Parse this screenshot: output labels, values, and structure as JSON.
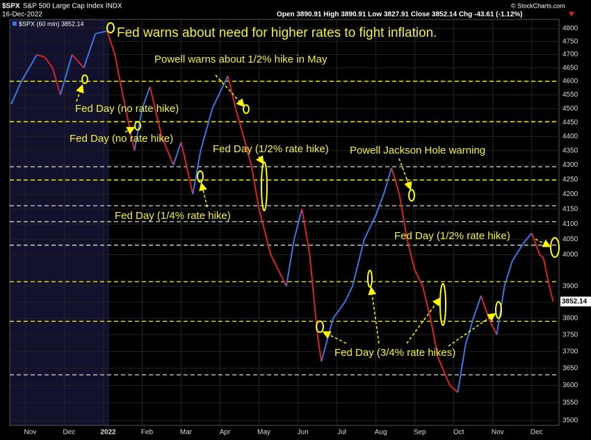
{
  "chart_data": {
    "type": "line",
    "symbol": "$SPX",
    "title": "S&P 500 Large Cap Index INDX",
    "date": "16-Dec-2022",
    "quote": "Open 3890.91 High 3890.91 Low 3827.91 Close 3852.14 Chg -43.61 (-1.12%)",
    "credit": "© StockCharts.com",
    "legend_label": "$SPX (60 min) 3852.14",
    "last_price": 3852.14,
    "log_scale": true,
    "grid": true,
    "up_color": "#3b78e7",
    "down_color": "#e0202a",
    "x": [
      0.65,
      0.9,
      1.1,
      1.3,
      1.5,
      1.7,
      1.9,
      2.2,
      2.5,
      2.8,
      3.1,
      3.3,
      3.5,
      3.8,
      4.0,
      4.2,
      4.5,
      4.8,
      5.0,
      5.3,
      5.5,
      5.8,
      6.0,
      6.2,
      6.4,
      6.6,
      6.8,
      7.0,
      7.3,
      7.5,
      7.7,
      7.9,
      8.1,
      8.3,
      8.5,
      8.6,
      8.9,
      9.2,
      9.4,
      9.7,
      10.0,
      10.2,
      10.4,
      10.6,
      10.8,
      11.0,
      11.2,
      11.4,
      11.6,
      11.9,
      12.1,
      12.3,
      12.5,
      12.7,
      12.9,
      13.1,
      13.3,
      13.5,
      13.8,
      14.0,
      14.2,
      14.3,
      14.45,
      14.55
    ],
    "series": [
      {
        "name": "$SPX",
        "values": [
          4520,
          4600,
          4650,
          4700,
          4690,
          4650,
          4550,
          4700,
          4650,
          4780,
          4790,
          4700,
          4550,
          4350,
          4500,
          4580,
          4400,
          4300,
          4380,
          4200,
          4350,
          4500,
          4560,
          4620,
          4500,
          4400,
          4300,
          4150,
          4000,
          3950,
          3900,
          4050,
          4150,
          4000,
          3750,
          3670,
          3800,
          3850,
          3900,
          4050,
          4130,
          4200,
          4290,
          4200,
          4050,
          3950,
          3900,
          3800,
          3680,
          3600,
          3580,
          3720,
          3800,
          3870,
          3800,
          3750,
          3900,
          3980,
          4040,
          4070,
          4000,
          3990,
          3900,
          3852.14
        ]
      }
    ],
    "xlim": [
      0.6,
      14.7
    ],
    "xticks": [
      {
        "value": 1,
        "label": "Nov"
      },
      {
        "value": 2,
        "label": "Dec"
      },
      {
        "value": 3,
        "label": "2022"
      },
      {
        "value": 4,
        "label": "Feb"
      },
      {
        "value": 5,
        "label": "Mar"
      },
      {
        "value": 6,
        "label": "Apr"
      },
      {
        "value": 7,
        "label": "May"
      },
      {
        "value": 8,
        "label": "Jun"
      },
      {
        "value": 9,
        "label": "Jul"
      },
      {
        "value": 10,
        "label": "Aug"
      },
      {
        "value": 11,
        "label": "Sep"
      },
      {
        "value": 12,
        "label": "Oct"
      },
      {
        "value": 13,
        "label": "Nov"
      },
      {
        "value": 14,
        "label": "Dec"
      }
    ],
    "ylim": [
      3486,
      4835
    ],
    "yticks": [
      3500,
      3550,
      3600,
      3650,
      3700,
      3750,
      3800,
      3850,
      3900,
      4000,
      4050,
      4100,
      4150,
      4200,
      4250,
      4300,
      4350,
      4400,
      4450,
      4500,
      4550,
      4600,
      4650,
      4700,
      4750,
      4800
    ],
    "levels": [
      {
        "value": 4600,
        "color": "#ffff00"
      },
      {
        "value": 4453,
        "color": "#ffff00"
      },
      {
        "value": 4294,
        "color": "#dddddd"
      },
      {
        "value": 4248,
        "color": "#ffff00"
      },
      {
        "value": 4161,
        "color": "#dddddd"
      },
      {
        "value": 4108,
        "color": "#dddddd"
      },
      {
        "value": 4031,
        "color": "#dddddd"
      },
      {
        "value": 3914,
        "color": "#ffff00"
      },
      {
        "value": 3791,
        "color": "#ffff00"
      },
      {
        "value": 3631,
        "color": "#dddddd"
      }
    ],
    "annotations": [
      "Fed warns about need for higher rates to fight inflation.",
      "Powell warns about 1/2% hike in May",
      "Fed Day (no rate hike)",
      "Fed Day (no rate hike)",
      "Fed Day (1/2% rate hike)",
      "Powell Jackson Hole warning",
      "Fed Day (1/4% rate hike)",
      "Fed Day (1/2% rate hike)",
      "Fed Day (3/4% rate hikes)"
    ]
  }
}
